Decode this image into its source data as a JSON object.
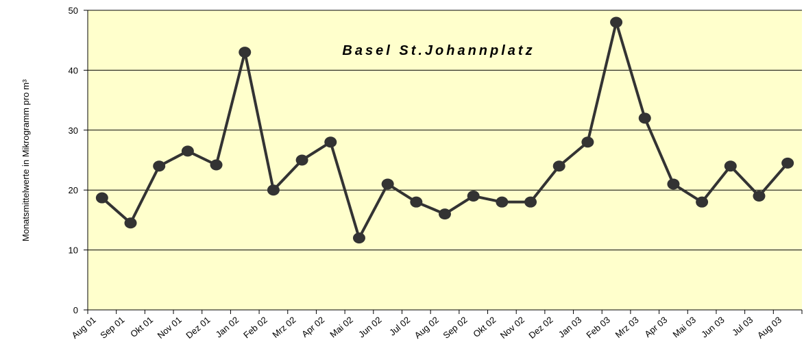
{
  "chart_data": {
    "type": "line",
    "title": "Basel St.Johannplatz",
    "y_label": "Monatsmittelwerte in Mikrogramm pro m³",
    "categories": [
      "Aug 01",
      "Sep 01",
      "Okt 01",
      "Nov 01",
      "Dez 01",
      "Jan 02",
      "Feb 02",
      "Mrz 02",
      "Apr 02",
      "Mai 02",
      "Jun 02",
      "Jul 02",
      "Aug 02",
      "Sep 02",
      "Okt 02",
      "Nov 02",
      "Dez 02",
      "Jan 03",
      "Feb 03",
      "Mrz 03",
      "Apr 03",
      "Mai 03",
      "Jun 03",
      "Jul 03",
      "Aug 03"
    ],
    "series": [
      {
        "color": "#333333",
        "values": [
          18.7,
          14.5,
          24,
          26.5,
          24.2,
          43,
          20,
          25,
          28,
          12,
          21,
          18,
          16,
          19,
          18,
          18,
          24,
          28,
          48,
          32,
          21,
          18,
          24,
          19,
          24.5
        ]
      }
    ],
    "ylim": [
      0,
      50
    ],
    "yticks": [
      0,
      10,
      20,
      30,
      40,
      50
    ],
    "grid": true
  }
}
